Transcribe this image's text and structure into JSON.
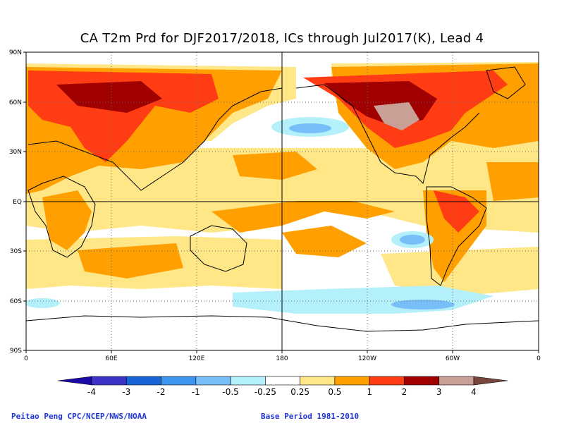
{
  "title": "CA T2m Prd for DJF2017/2018, ICs through Jul2017(K), Lead 4",
  "lat_labels": [
    "90N",
    "60N",
    "30N",
    "EQ",
    "30S",
    "60S",
    "90S"
  ],
  "lon_labels": [
    "0",
    "60E",
    "120E",
    "180",
    "120W",
    "60W",
    "0"
  ],
  "colorbar": {
    "labels": [
      "-4",
      "-3",
      "-2",
      "-1",
      "-0.5",
      "-0.25",
      "0.25",
      "0.5",
      "1",
      "2",
      "3",
      "4"
    ],
    "colors": [
      "#1a0aa8",
      "#3c34c8",
      "#1a64d8",
      "#3c96f0",
      "#78bef8",
      "#b4f0fa",
      "#ffffff",
      "#ffe687",
      "#ffa000",
      "#ff3c14",
      "#a00000",
      "#c8a096",
      "#78463c"
    ]
  },
  "credit_left": "Peitao Peng CPC/NCEP/NWS/NOAA",
  "credit_right": "Base Period 1981-2010"
}
